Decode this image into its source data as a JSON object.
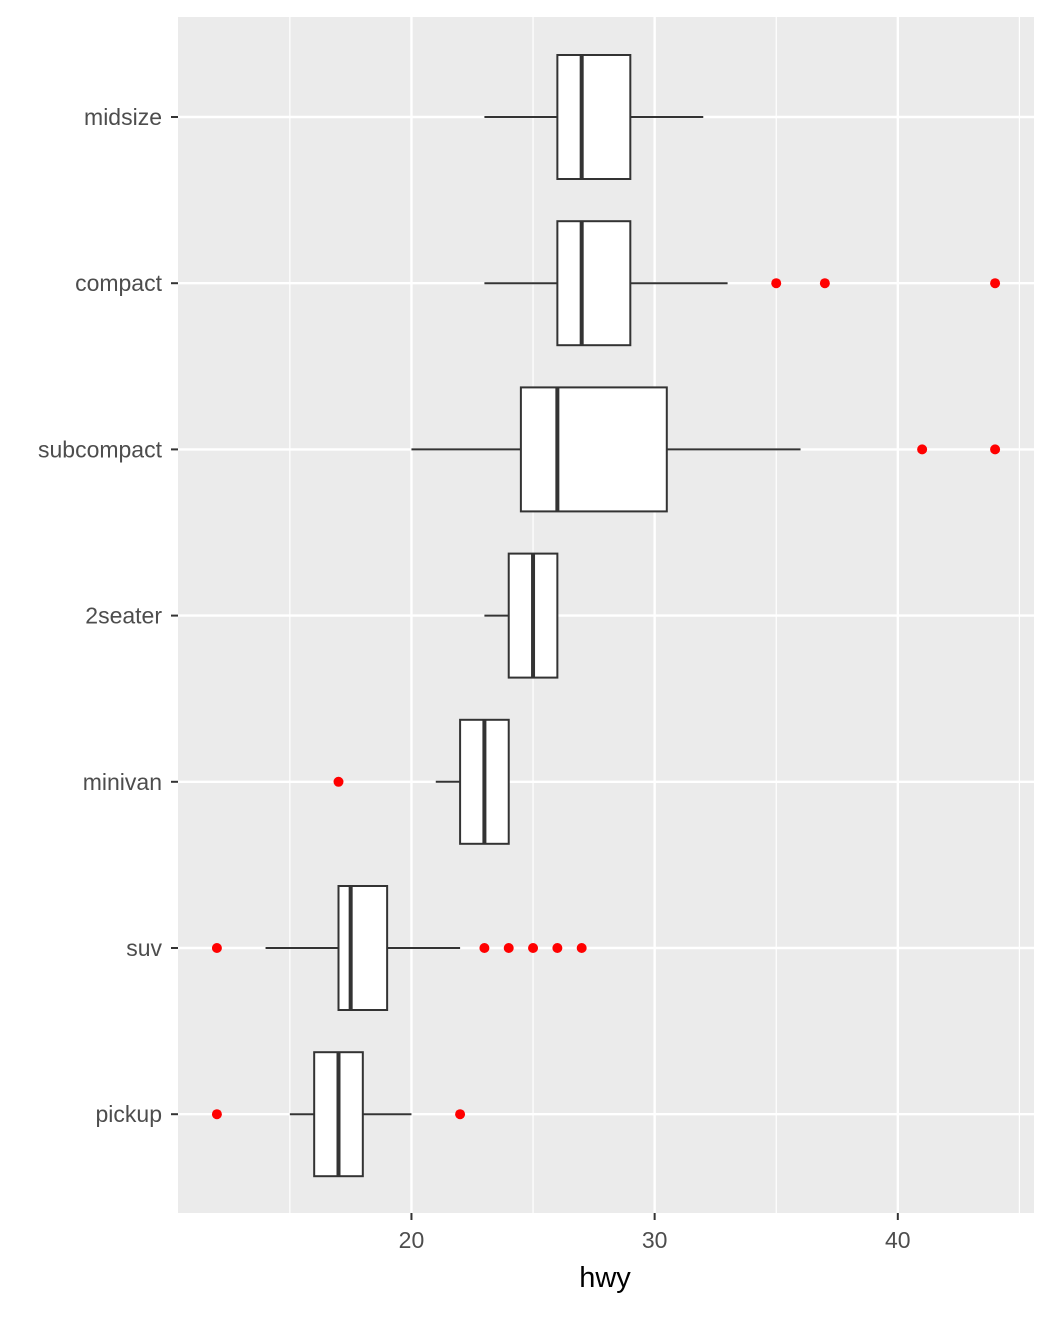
{
  "chart_data": {
    "type": "boxplot",
    "orientation": "horizontal",
    "title": "",
    "xlabel": "hwy",
    "ylabel": "",
    "xlim": [
      10.4,
      45.6
    ],
    "x_ticks": [
      20,
      30,
      40
    ],
    "x_minor_ticks": [
      15,
      25,
      35,
      45
    ],
    "grid": true,
    "background": "#ebebeb",
    "outlier_color": "#ff0000",
    "categories": [
      "midsize",
      "compact",
      "subcompact",
      "2seater",
      "minivan",
      "suv",
      "pickup"
    ],
    "boxes": [
      {
        "category": "midsize",
        "whisker_low": 23,
        "q1": 26,
        "median": 27,
        "q3": 29,
        "whisker_high": 32,
        "outliers": []
      },
      {
        "category": "compact",
        "whisker_low": 23,
        "q1": 26,
        "median": 27,
        "q3": 29,
        "whisker_high": 33,
        "outliers": [
          35,
          37,
          44
        ]
      },
      {
        "category": "subcompact",
        "whisker_low": 20,
        "q1": 24.5,
        "median": 26,
        "q3": 30.5,
        "whisker_high": 36,
        "outliers": [
          41,
          44
        ]
      },
      {
        "category": "2seater",
        "whisker_low": 23,
        "q1": 24,
        "median": 25,
        "q3": 26,
        "whisker_high": 26,
        "outliers": []
      },
      {
        "category": "minivan",
        "whisker_low": 21,
        "q1": 22,
        "median": 23,
        "q3": 24,
        "whisker_high": 24,
        "outliers": [
          17
        ]
      },
      {
        "category": "suv",
        "whisker_low": 14,
        "q1": 17,
        "median": 17.5,
        "q3": 19,
        "whisker_high": 22,
        "outliers": [
          12,
          23,
          24,
          25,
          26,
          27
        ]
      },
      {
        "category": "pickup",
        "whisker_low": 15,
        "q1": 16,
        "median": 17,
        "q3": 18,
        "whisker_high": 20,
        "outliers": [
          12,
          22
        ]
      }
    ]
  }
}
